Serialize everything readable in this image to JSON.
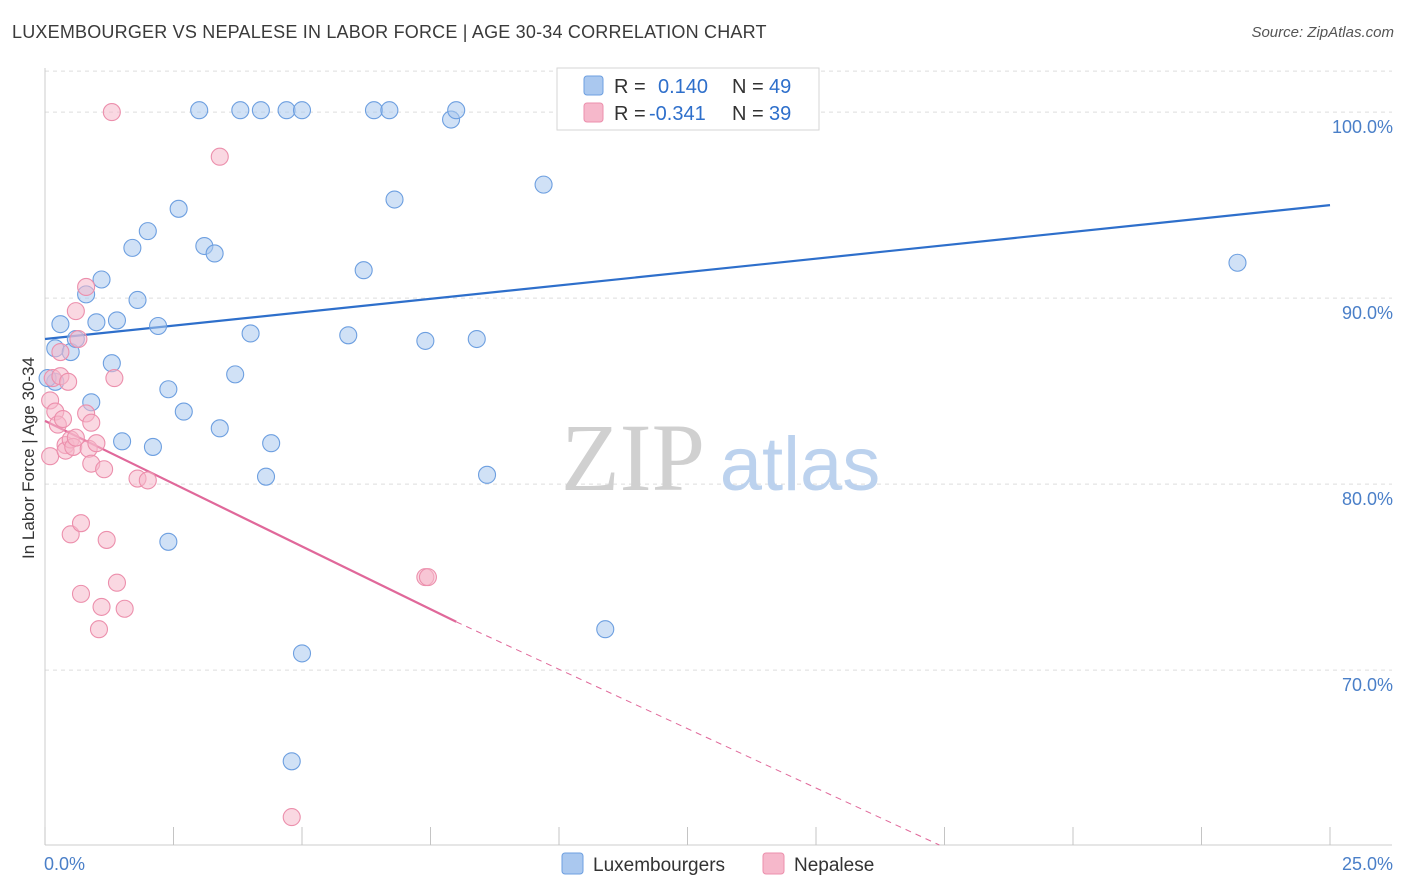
{
  "title": "LUXEMBOURGER VS NEPALESE IN LABOR FORCE | AGE 30-34 CORRELATION CHART",
  "source": "Source: ZipAtlas.com",
  "watermark": {
    "zip": "ZIP",
    "atlas": "atlas"
  },
  "colors": {
    "blue_fill": "#aac8ef",
    "blue_stroke": "#6d9fe0",
    "blue_line": "#2e6fcb",
    "pink_fill": "#f6b8cb",
    "pink_stroke": "#ec8fac",
    "pink_line": "#e0689a",
    "axis_text": "#4a7fc8",
    "grid": "#dddddd"
  },
  "legend": {
    "rows": [
      {
        "r_label": "R =",
        "r_value": "0.140",
        "n_label": "N =",
        "n_value": "49"
      },
      {
        "r_label": "R =",
        "r_value": "-0.341",
        "n_label": "N =",
        "n_value": "39"
      }
    ]
  },
  "chart_data": {
    "type": "scatter",
    "title": "LUXEMBOURGER VS NEPALESE IN LABOR FORCE | AGE 30-34 CORRELATION CHART",
    "xlabel": "",
    "ylabel": "In Labor Force | Age 30-34",
    "xlim": [
      0,
      25
    ],
    "ylim": [
      60.6,
      102.8
    ],
    "x_tick_labels": [
      "0.0%",
      "25.0%"
    ],
    "y_ticks": [
      70,
      80,
      90,
      100
    ],
    "y_tick_labels": [
      "70.0%",
      "80.0%",
      "90.0%",
      "100.0%"
    ],
    "grid": true,
    "legend_position": "top-center",
    "series": [
      {
        "name": "Luxembourgers",
        "color": "#aac8ef",
        "r": 0.14,
        "n": 49,
        "trend": {
          "x": [
            0.0,
            25.0
          ],
          "y": [
            87.8,
            95.0
          ],
          "style": "solid"
        },
        "points": [
          [
            0.2,
            85.5
          ],
          [
            0.2,
            87.3
          ],
          [
            0.3,
            88.6
          ],
          [
            0.5,
            87.1
          ],
          [
            0.6,
            87.8
          ],
          [
            0.8,
            90.2
          ],
          [
            0.9,
            84.4
          ],
          [
            1.0,
            88.7
          ],
          [
            1.1,
            91.0
          ],
          [
            1.3,
            86.5
          ],
          [
            1.4,
            88.8
          ],
          [
            1.5,
            82.3
          ],
          [
            1.7,
            92.7
          ],
          [
            1.8,
            89.9
          ],
          [
            2.0,
            93.6
          ],
          [
            2.1,
            82.0
          ],
          [
            2.2,
            88.5
          ],
          [
            2.4,
            85.1
          ],
          [
            2.4,
            76.9
          ],
          [
            2.6,
            94.8
          ],
          [
            2.7,
            83.9
          ],
          [
            3.0,
            100.1
          ],
          [
            3.1,
            92.8
          ],
          [
            3.3,
            92.4
          ],
          [
            3.4,
            83.0
          ],
          [
            3.7,
            85.9
          ],
          [
            3.8,
            100.1
          ],
          [
            4.0,
            88.1
          ],
          [
            4.2,
            100.1
          ],
          [
            4.3,
            80.4
          ],
          [
            4.4,
            82.2
          ],
          [
            4.7,
            100.1
          ],
          [
            4.8,
            65.1
          ],
          [
            5.0,
            100.1
          ],
          [
            5.0,
            70.9
          ],
          [
            5.9,
            88.0
          ],
          [
            6.2,
            91.5
          ],
          [
            6.4,
            100.1
          ],
          [
            6.7,
            100.1
          ],
          [
            6.8,
            95.3
          ],
          [
            7.4,
            87.7
          ],
          [
            7.9,
            99.6
          ],
          [
            8.0,
            100.1
          ],
          [
            8.4,
            87.8
          ],
          [
            8.6,
            80.5
          ],
          [
            9.7,
            96.1
          ],
          [
            10.9,
            72.2
          ],
          [
            23.2,
            91.9
          ],
          [
            0.05,
            85.7
          ]
        ]
      },
      {
        "name": "Nepalese",
        "color": "#f6b8cb",
        "r": -0.341,
        "n": 39,
        "trend": {
          "x": [
            0.0,
            8.0
          ],
          "y": [
            83.4,
            72.6
          ],
          "style": "solid",
          "extension": {
            "x": [
              8.0,
              17.4
            ],
            "y": [
              72.6,
              60.6
            ],
            "style": "dashed"
          }
        },
        "points": [
          [
            0.1,
            81.5
          ],
          [
            0.1,
            84.5
          ],
          [
            0.15,
            85.7
          ],
          [
            0.2,
            83.9
          ],
          [
            0.25,
            83.2
          ],
          [
            0.3,
            87.1
          ],
          [
            0.3,
            85.8
          ],
          [
            0.35,
            83.5
          ],
          [
            0.4,
            82.1
          ],
          [
            0.4,
            81.8
          ],
          [
            0.45,
            85.5
          ],
          [
            0.5,
            82.4
          ],
          [
            0.5,
            77.3
          ],
          [
            0.55,
            82.0
          ],
          [
            0.6,
            82.5
          ],
          [
            0.6,
            89.3
          ],
          [
            0.65,
            87.8
          ],
          [
            0.7,
            77.9
          ],
          [
            0.7,
            74.1
          ],
          [
            0.8,
            90.6
          ],
          [
            0.8,
            83.8
          ],
          [
            0.85,
            81.9
          ],
          [
            0.9,
            81.1
          ],
          [
            0.9,
            83.3
          ],
          [
            1.0,
            82.2
          ],
          [
            1.05,
            72.2
          ],
          [
            1.1,
            73.4
          ],
          [
            1.15,
            80.8
          ],
          [
            1.2,
            77.0
          ],
          [
            1.3,
            100.0
          ],
          [
            1.35,
            85.7
          ],
          [
            1.4,
            74.7
          ],
          [
            1.55,
            73.3
          ],
          [
            1.8,
            80.3
          ],
          [
            2.0,
            80.2
          ],
          [
            3.4,
            97.6
          ],
          [
            4.8,
            62.1
          ],
          [
            7.4,
            75.0
          ],
          [
            7.45,
            75.0
          ]
        ]
      }
    ]
  }
}
